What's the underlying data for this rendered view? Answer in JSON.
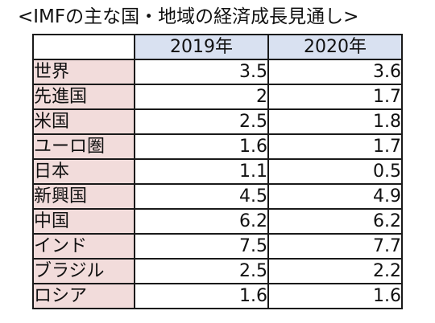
{
  "title": "<IMFの主な国・地域の経済成長見通し>",
  "table": {
    "header": [
      "",
      "2019年",
      "2020年"
    ],
    "rows": [
      {
        "region": "世界",
        "y2019": "3.5",
        "y2020": "3.6"
      },
      {
        "region": "先進国",
        "y2019": "2",
        "y2020": "1.7"
      },
      {
        "region": "米国",
        "y2019": "2.5",
        "y2020": "1.8"
      },
      {
        "region": "ユーロ圏",
        "y2019": "1.6",
        "y2020": "1.7"
      },
      {
        "region": "日本",
        "y2019": "1.1",
        "y2020": "0.5"
      },
      {
        "region": "新興国",
        "y2019": "4.5",
        "y2020": "4.9"
      },
      {
        "region": "中国",
        "y2019": "6.2",
        "y2020": "6.2"
      },
      {
        "region": "インド",
        "y2019": "7.5",
        "y2020": "7.7"
      },
      {
        "region": "ブラジル",
        "y2019": "2.5",
        "y2020": "2.2"
      },
      {
        "region": "ロシア",
        "y2019": "1.6",
        "y2020": "1.6"
      }
    ]
  },
  "colors": {
    "header_fill": "#d9e1f1",
    "region_fill": "#f2dcdb",
    "border": "#1a1a1a"
  }
}
